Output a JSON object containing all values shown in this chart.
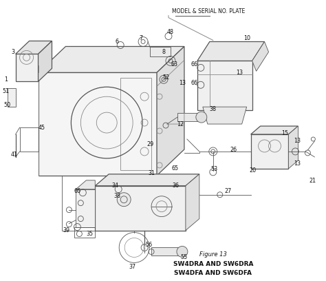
{
  "title_line1": "Figure 13",
  "title_line2": "SW4DRA AND SW6DRA",
  "title_line3": "SW4DFA AND SW6DFA",
  "annotation": "MODEL & SERIAL NO. PLATE",
  "bg_color": "#ffffff",
  "line_color": "#555555",
  "label_color": "#111111",
  "fig_width": 4.74,
  "fig_height": 4.08,
  "dpi": 100
}
